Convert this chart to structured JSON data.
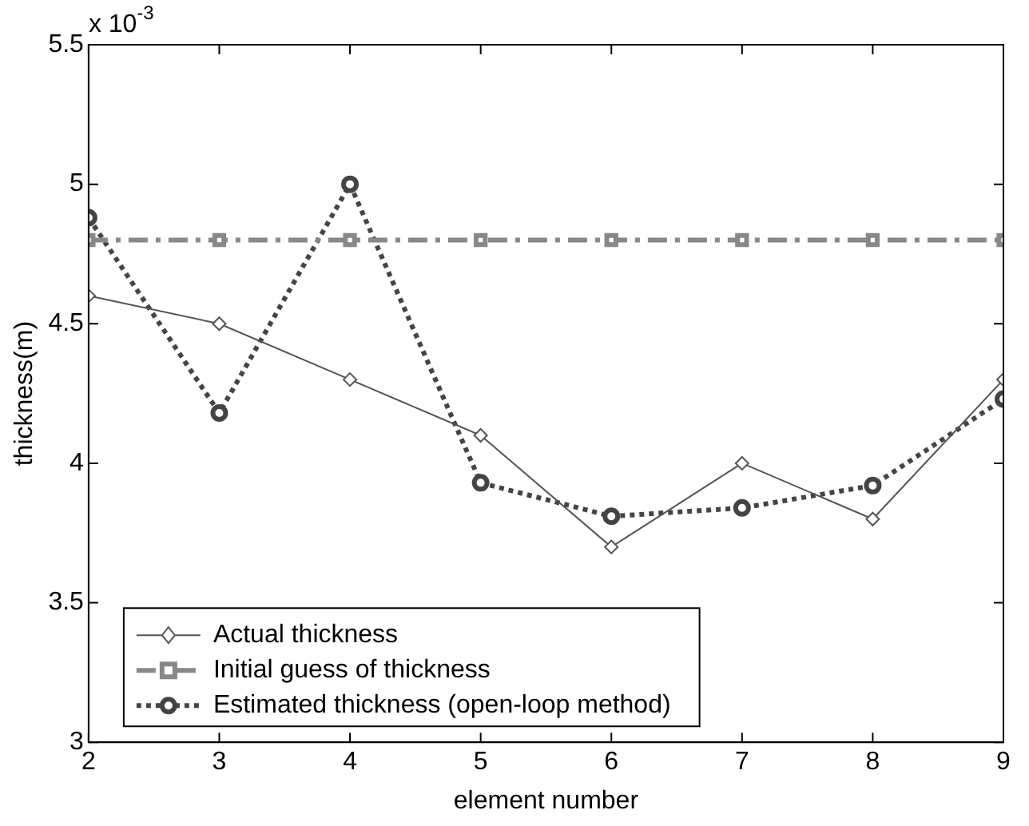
{
  "chart_data": {
    "type": "line",
    "xlabel": "element number",
    "ylabel": "thickness(m)",
    "x": [
      2,
      3,
      4,
      5,
      6,
      7,
      8,
      9
    ],
    "series": [
      {
        "name": "Actual thickness",
        "color": "#555555",
        "marker": "diamond",
        "line_style": "solid",
        "values": [
          4.6,
          4.5,
          4.3,
          4.1,
          3.7,
          4.0,
          3.8,
          4.3
        ]
      },
      {
        "name": "Initial guess of thickness",
        "color": "#888888",
        "marker": "square",
        "line_style": "dashed",
        "values": [
          4.8,
          4.8,
          4.8,
          4.8,
          4.8,
          4.8,
          4.8,
          4.8
        ]
      },
      {
        "name": "Estimated thickness (open-loop method)",
        "color": "#444444",
        "marker": "circle",
        "line_style": "dotted",
        "values": [
          4.88,
          4.18,
          5.0,
          3.93,
          3.81,
          3.84,
          3.92,
          4.23
        ]
      }
    ],
    "xlim": [
      2,
      9
    ],
    "xticks": [
      2,
      3,
      4,
      5,
      6,
      7,
      8,
      9
    ],
    "ylim": [
      3,
      5.5
    ],
    "yticks": [
      3,
      3.5,
      4,
      4.5,
      5,
      5.5
    ],
    "annotations": [
      "x 10$^{-3}$"
    ],
    "grid": false,
    "legend": "bottom left"
  }
}
